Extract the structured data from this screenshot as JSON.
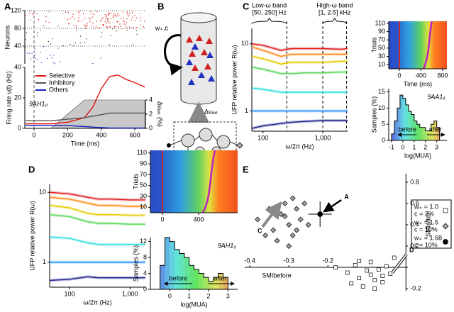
{
  "chart_data": [
    {
      "type": "raster",
      "label": "A",
      "ylabel": "Neurons",
      "xlim": [
        -55,
        663
      ],
      "ylim": [
        0,
        120
      ],
      "yticks": [
        40,
        80,
        120
      ],
      "grid": true
    },
    {
      "type": "line",
      "ylabel": "Firing rate ν(t) (Hz)",
      "xlabel": "Time (ms)",
      "annotation": "9AH1₀",
      "x": [
        -50,
        0,
        100,
        200,
        300,
        350,
        400,
        450,
        500,
        550,
        600,
        660
      ],
      "xlim": [
        -55,
        663
      ],
      "xticks": [
        0,
        200,
        400,
        600
      ],
      "ylim": [
        0,
        40
      ],
      "yticks": [
        0,
        20,
        40
      ],
      "series": [
        {
          "name": "Selective",
          "color": "#e01010",
          "values": [
            3,
            3,
            3,
            4,
            7,
            14,
            26,
            34,
            35,
            32,
            30,
            27
          ]
        },
        {
          "name": "Inhibitory",
          "color": "#555555",
          "values": [
            5,
            5,
            5,
            6,
            7,
            8,
            9,
            10,
            10,
            10,
            10,
            10
          ]
        },
        {
          "name": "Others",
          "color": "#1020c0",
          "values": [
            2,
            2,
            2,
            1.8,
            1.2,
            0.8,
            0.5,
            0.3,
            0.2,
            0.2,
            0.2,
            0.2
          ]
        }
      ],
      "input": {
        "color": "#c8c8c8",
        "axis": "y2",
        "values": [
          0,
          0,
          0,
          2,
          4,
          4,
          4,
          4,
          4,
          4,
          4,
          4
        ]
      },
      "y2label": "Δνₑₓₜ (%)",
      "y2lim": [
        0,
        8.6
      ],
      "y2ticks": [
        0,
        2,
        4
      ]
    },
    {
      "type": "line",
      "label": "C",
      "ylabel": "UFP relative power R(ω)",
      "xlabel": "ω/2π (Hz)",
      "xlog": true,
      "ylog": true,
      "xlim": [
        65,
        2600
      ],
      "xticks": [
        100,
        {
          "value": 1000,
          "label": "1,000"
        }
      ],
      "ylim": [
        0.5,
        17
      ],
      "yticks": [
        1,
        10
      ],
      "bands": [
        {
          "name": "Low-ω band",
          "range_label": "[50, 250] Hz",
          "range": [
            50,
            250
          ]
        },
        {
          "name": "High-ω band",
          "range_label": "[1, 2.5] kHz",
          "range": [
            1000,
            2500
          ]
        }
      ],
      "x": [
        65,
        100,
        200,
        300,
        500,
        1000,
        2000,
        2600
      ],
      "series": [
        {
          "color": "#e02020",
          "values": [
            10,
            9.5,
            8,
            8.5,
            8.5,
            8.5,
            8.3,
            8.5
          ]
        },
        {
          "color": "#ff8c1a",
          "values": [
            9,
            8,
            6.5,
            7,
            7,
            7,
            7,
            7
          ]
        },
        {
          "color": "#e6cc00",
          "values": [
            6.5,
            6,
            5,
            5.3,
            5.3,
            5.3,
            5.5,
            5.5
          ]
        },
        {
          "color": "#5cd65c",
          "values": [
            4.5,
            4.2,
            3.6,
            3.6,
            3.7,
            3.7,
            3.8,
            3.8
          ]
        },
        {
          "color": "#33dddd",
          "values": [
            2.2,
            2.1,
            1.9,
            1.9,
            1.9,
            1.9,
            1.9,
            1.9
          ]
        },
        {
          "color": "#1e90ff",
          "values": [
            1,
            1,
            1,
            1,
            1,
            1,
            1,
            1
          ]
        },
        {
          "color": "#202090",
          "values": [
            0.55,
            0.6,
            0.65,
            0.68,
            0.7,
            0.72,
            0.72,
            0.72
          ]
        }
      ]
    },
    {
      "type": "heatmap",
      "ylabel": "Trials",
      "xlabel": "Time (ms)",
      "xlim": [
        -197,
        879
      ],
      "xticks": [
        0,
        400,
        800
      ],
      "ylim": [
        0,
        115
      ],
      "yticks": [
        10,
        30,
        50,
        70,
        90,
        110
      ]
    },
    {
      "type": "histogram",
      "ylabel": "Samples (%)",
      "xlabel": "log(MUA)",
      "annotation": "9AA1₆",
      "before": "before",
      "after": "after",
      "bins": [
        -1,
        -0.75,
        -0.5,
        -0.25,
        0,
        0.25,
        0.5,
        0.75,
        1,
        1.25,
        1.5,
        1.75,
        2,
        2.25,
        2.5,
        2.75,
        3,
        3.25
      ],
      "counts": [
        2,
        6,
        10,
        14,
        13,
        11,
        9,
        8,
        6,
        5,
        4,
        4,
        3,
        3,
        5,
        6,
        4
      ],
      "xlim": [
        -1.25,
        3.9
      ],
      "xticks": [
        -1,
        0,
        1,
        2,
        3
      ],
      "ylim": [
        0,
        16
      ],
      "yticks": [
        0,
        5,
        10,
        15
      ]
    },
    {
      "type": "line",
      "label": "D",
      "ylabel": "UFP relative power R(ω)",
      "xlabel": "ω/2π (Hz)",
      "xlog": true,
      "ylog": true,
      "xlim": [
        47,
        1800
      ],
      "xticks": [
        100,
        {
          "value": 1000,
          "label": "1,000"
        }
      ],
      "ylim": [
        0.44,
        13
      ],
      "yticks": [
        1,
        10
      ],
      "x": [
        47,
        100,
        200,
        300,
        500,
        1000,
        1800
      ],
      "series": [
        {
          "color": "#e02020",
          "values": [
            10,
            9.5,
            8.5,
            8,
            8,
            7.8,
            7.8
          ]
        },
        {
          "color": "#ff8c1a",
          "values": [
            8.5,
            8,
            7,
            6.5,
            6.5,
            6.3,
            6.3
          ]
        },
        {
          "color": "#e6cc00",
          "values": [
            6.5,
            6,
            5,
            4.8,
            4.8,
            4.7,
            4.7
          ]
        },
        {
          "color": "#5cd65c",
          "values": [
            4.8,
            4.5,
            3.8,
            3.6,
            3.6,
            3.5,
            3.5
          ]
        },
        {
          "color": "#33dddd",
          "values": [
            2.3,
            2.2,
            1.9,
            1.8,
            1.8,
            1.8,
            1.8
          ]
        },
        {
          "color": "#1e90ff",
          "values": [
            1,
            1,
            1,
            1,
            1,
            1,
            1
          ]
        },
        {
          "color": "#202090",
          "values": [
            0.55,
            0.57,
            0.62,
            0.6,
            0.6,
            0.6,
            0.6
          ]
        }
      ]
    },
    {
      "type": "heatmap",
      "ylabel": "Trials",
      "xlim": [
        -133,
        831
      ],
      "xticks": [
        0,
        400
      ],
      "ylim": [
        0,
        115
      ],
      "yticks": [
        10,
        30,
        50,
        70,
        90,
        110
      ]
    },
    {
      "type": "histogram",
      "ylabel": "Samples (%)",
      "xlabel": "log(MUA)",
      "annotation": "9AH1₀",
      "before": "before",
      "after": "after",
      "bins": [
        -0.5,
        -0.25,
        0,
        0.25,
        0.5,
        0.75,
        1,
        1.25,
        1.5,
        1.75,
        2,
        2.25,
        2.5,
        2.75,
        3
      ],
      "counts": [
        6,
        13,
        12,
        10,
        9,
        8,
        6,
        5,
        4,
        3,
        2,
        3,
        4,
        3
      ],
      "xlim": [
        -1,
        3.5
      ],
      "xticks": [
        0,
        1,
        2,
        3
      ],
      "ylim": [
        0,
        13
      ],
      "yticks": [
        0,
        4,
        8,
        12
      ]
    },
    {
      "type": "scatter",
      "label": "E",
      "xlabel": "SMIbefore",
      "ylabel": "SMIafter",
      "xlim": [
        -0.413,
        0.005
      ],
      "xticks": [
        -0.4,
        -0.3,
        -0.2
      ],
      "ylim": [
        -0.22,
        0.88
      ],
      "yticks": [
        -0.2,
        0.2,
        0.4,
        0.6,
        0.8
      ],
      "annotations": [
        "A",
        "C",
        "D"
      ],
      "series": [
        {
          "name": "w₊ = 1.0",
          "condition": "c = 2%",
          "marker": "square",
          "color": "#ffffff",
          "x": [
            -0.18,
            -0.15,
            -0.13,
            -0.12,
            -0.1,
            -0.09,
            -0.08,
            -0.07,
            -0.06,
            -0.05,
            -0.14,
            -0.11,
            -0.08,
            -0.06,
            -0.04,
            -0.12,
            -0.09,
            -0.03
          ],
          "values": [
            0,
            -0.05,
            0.02,
            -0.1,
            -0.03,
            0.05,
            -0.12,
            -0.02,
            -0.08,
            0.01,
            -0.15,
            -0.18,
            -0.2,
            -0.14,
            -0.06,
            0.06,
            -0.07,
            0.09
          ]
        },
        {
          "name": "w₊ = 1.5",
          "condition": "c = 10%",
          "marker": "diamond",
          "color": "#a0a0a0",
          "x": [
            -0.38,
            -0.35,
            -0.34,
            -0.32,
            -0.31,
            -0.3,
            -0.29,
            -0.28,
            -0.27,
            -0.33,
            -0.3,
            -0.28,
            -0.26,
            -0.36,
            -0.31,
            -0.29,
            -0.25
          ],
          "values": [
            0.45,
            0.55,
            0.35,
            0.5,
            0.6,
            0.4,
            0.3,
            0.55,
            0.45,
            0.25,
            0.2,
            0.35,
            0.6,
            0.3,
            0.48,
            0.65,
            0.4
          ]
        },
        {
          "name": "w₊ = 1.68",
          "condition": "c = 10%",
          "marker": "circle",
          "color": "#000000",
          "x": [
            -0.22
          ],
          "values": [
            0.5
          ],
          "xerr": [
            0.03
          ],
          "yerr": [
            0.12
          ]
        }
      ]
    }
  ],
  "diagram": {
    "label": "B",
    "weight_label": "w₊,c",
    "input_label": "Δνₑₓₜ"
  }
}
